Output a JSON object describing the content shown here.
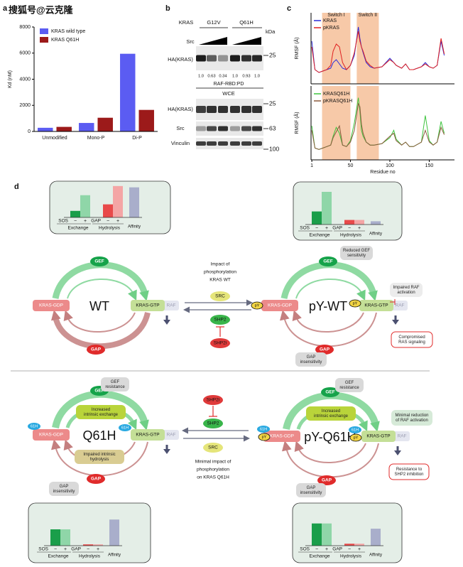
{
  "watermark": "搜狐号@云克隆",
  "panels": [
    "a",
    "b",
    "c",
    "d"
  ],
  "chart_data": [
    {
      "type": "bar",
      "ylabel": "Kd (nM)",
      "categories": [
        "Unmodified",
        "Mono-P",
        "Di-P"
      ],
      "series": [
        {
          "name": "KRAS wild type",
          "color": "#5b5cf2",
          "values": [
            280,
            650,
            5950
          ]
        },
        {
          "name": "KRAS Q61H",
          "color": "#9c1a1a",
          "values": [
            350,
            1050,
            1650
          ]
        }
      ],
      "ylim": [
        0,
        8000
      ],
      "yticks": [
        0,
        2000,
        4000,
        6000,
        8000
      ],
      "legend": "upper left"
    },
    {
      "type": "line",
      "ylabel": "RMSF (Å)",
      "x": [
        1,
        5,
        10,
        15,
        20,
        25,
        28,
        32,
        36,
        40,
        45,
        50,
        55,
        60,
        62,
        64,
        66,
        70,
        75,
        80,
        90,
        100,
        105,
        108,
        115,
        120,
        125,
        130,
        140,
        145,
        150,
        155,
        160,
        165,
        169
      ],
      "series": [
        {
          "name": "KRAS",
          "color": "#2b2bd9",
          "values": [
            3.0,
            1.0,
            0.8,
            0.9,
            1.0,
            1.1,
            1.5,
            1.7,
            1.4,
            1.1,
            1.0,
            1.3,
            2.0,
            4.0,
            3.2,
            2.6,
            2.2,
            1.5,
            1.2,
            1.1,
            1.2,
            1.8,
            1.5,
            1.3,
            1.1,
            1.4,
            1.0,
            1.0,
            1.2,
            1.5,
            1.2,
            1.1,
            1.3,
            3.0,
            2.0
          ]
        },
        {
          "name": "pKRAS",
          "color": "#e02020",
          "values": [
            2.6,
            1.0,
            0.8,
            0.9,
            1.0,
            1.3,
            2.3,
            2.8,
            2.6,
            1.5,
            1.0,
            1.3,
            2.2,
            3.7,
            3.0,
            2.6,
            2.3,
            1.6,
            1.3,
            1.1,
            1.2,
            1.7,
            1.5,
            1.3,
            1.1,
            1.4,
            1.0,
            1.0,
            1.2,
            1.4,
            1.2,
            1.1,
            1.3,
            3.2,
            2.1
          ]
        }
      ],
      "xlim": [
        0,
        182
      ],
      "ylim": [
        0,
        5
      ],
      "regions": [
        {
          "label": "Switch I",
          "range": [
            14,
            50
          ]
        },
        {
          "label": "Switch II",
          "range": [
            58,
            86
          ]
        }
      ],
      "legend": "upper left"
    },
    {
      "type": "line",
      "ylabel": "RMSF (Å)",
      "xlabel": "Residue no",
      "x": [
        1,
        5,
        10,
        15,
        20,
        25,
        28,
        32,
        36,
        40,
        45,
        50,
        55,
        60,
        62,
        64,
        66,
        70,
        75,
        80,
        90,
        100,
        105,
        108,
        115,
        120,
        125,
        130,
        140,
        145,
        150,
        155,
        160,
        165,
        169
      ],
      "series": [
        {
          "name": "KRASQ61H",
          "color": "#3ec43e",
          "values": [
            2.3,
            0.8,
            0.7,
            0.8,
            0.9,
            1.0,
            1.6,
            2.2,
            1.8,
            1.0,
            0.9,
            1.3,
            2.5,
            4.2,
            3.3,
            2.0,
            1.6,
            1.2,
            1.0,
            1.0,
            1.1,
            1.5,
            2.0,
            1.4,
            1.0,
            1.2,
            0.9,
            0.9,
            1.2,
            3.0,
            1.3,
            1.0,
            1.2,
            2.6,
            1.8
          ]
        },
        {
          "name": "pKRASQ61H",
          "color": "#8b5a3c",
          "values": [
            2.0,
            0.8,
            0.7,
            0.8,
            0.9,
            1.0,
            1.5,
            1.9,
            2.3,
            1.0,
            0.9,
            1.2,
            2.0,
            3.8,
            3.6,
            2.4,
            1.8,
            1.2,
            1.0,
            1.0,
            1.1,
            1.6,
            1.8,
            1.3,
            1.0,
            1.2,
            0.9,
            0.9,
            1.2,
            2.0,
            1.2,
            1.0,
            1.2,
            2.2,
            1.7
          ]
        }
      ],
      "xlim": [
        0,
        182
      ],
      "ylim": [
        0,
        5
      ],
      "xticks": [
        1,
        50,
        100,
        150
      ],
      "regions": [
        {
          "range": [
            14,
            50
          ]
        },
        {
          "range": [
            58,
            86
          ]
        }
      ],
      "legend": "upper left"
    },
    {
      "type": "bar",
      "categories": [
        "−",
        "+",
        "−",
        "+",
        "Affinity"
      ],
      "values": [
        10,
        34,
        20,
        48,
        46
      ],
      "colors": [
        "#1a9e4a",
        "#8fd6a8",
        "#e84a4a",
        "#f4a5a5",
        "#a9aecb"
      ],
      "ylim": [
        0,
        50
      ],
      "row_labels": [
        "SOS",
        "GAP"
      ],
      "groups": [
        "Exchange",
        "Hydrolysis"
      ]
    },
    {
      "type": "bar",
      "categories": [
        "−",
        "+",
        "−",
        "+",
        "Affinity"
      ],
      "values": [
        20,
        50,
        7,
        7,
        5
      ],
      "colors": [
        "#1a9e4a",
        "#8fd6a8",
        "#e84a4a",
        "#f4a5a5",
        "#a9aecb"
      ],
      "ylim": [
        0,
        50
      ],
      "row_labels": [
        "SOS",
        "GAP"
      ],
      "groups": [
        "Exchange",
        "Hydrolysis"
      ]
    },
    {
      "type": "bar",
      "categories": [
        "−",
        "+",
        "−",
        "+",
        "Affinity"
      ],
      "values": [
        25,
        25,
        2,
        2,
        40
      ],
      "colors": [
        "#1a9e4a",
        "#8fd6a8",
        "#e84a4a",
        "#f4a5a5",
        "#a9aecb"
      ],
      "ylim": [
        0,
        50
      ],
      "row_labels": [
        "SOS",
        "GAP"
      ],
      "groups": [
        "Exchange",
        "Hydrolysis"
      ]
    },
    {
      "type": "bar",
      "categories": [
        "−",
        "+",
        "−",
        "+",
        "Affinity"
      ],
      "values": [
        34,
        34,
        3,
        3,
        26
      ],
      "colors": [
        "#1a9e4a",
        "#8fd6a8",
        "#e84a4a",
        "#f4a5a5",
        "#a9aecb"
      ],
      "ylim": [
        0,
        50
      ],
      "row_labels": [
        "SOS",
        "GAP"
      ],
      "groups": [
        "Exchange",
        "Hydrolysis"
      ]
    }
  ],
  "blot": {
    "header": "KRAS",
    "groups": [
      "G12V",
      "Q61H"
    ],
    "treatment": "Src",
    "unit": "kDa",
    "pulldown": {
      "rows": [
        {
          "label": "HA(KRAS)",
          "marker": "25"
        }
      ],
      "quant": [
        "1.0",
        "0.63",
        "0.34",
        "1.0",
        "0.93",
        "1.0"
      ],
      "title": "RAF-RBD:PD"
    },
    "wce": {
      "title": "WCE",
      "rows": [
        {
          "label": "HA(KRAS)",
          "marker": "25"
        },
        {
          "label": "Src",
          "marker": "63"
        },
        {
          "label": "Vinculin",
          "marker": "100"
        }
      ]
    }
  },
  "diagram": {
    "wt": {
      "gef": "GEF",
      "gdp": "KRAS-GDP",
      "gtp": "KRAS-GTP",
      "raf": "RAF",
      "name": "WT",
      "gap": "GAP"
    },
    "mid_top": {
      "impact": [
        "Impact of",
        "phosphorylation",
        "KRAS WT"
      ],
      "src": "SRC",
      "shp2": "SHP2",
      "shp2i": "SHP2i"
    },
    "pywt": {
      "gef": "GEF",
      "gef_note": [
        "Reduced GEF",
        "sensitivity"
      ],
      "py1": "pY",
      "gdp": "KRAS-GDP",
      "py2": "pY",
      "gtp": "KRAS-GTP",
      "raf": "RAF",
      "raf_note": [
        "Impaired RAF",
        "activation"
      ],
      "name": "pY-WT",
      "outcome": [
        "Compromised",
        "RAS signaling"
      ],
      "gap": "GAP",
      "gap_note": [
        "GAP",
        "insensitivity"
      ]
    },
    "q61h": {
      "gef": "GEF",
      "gef_note": [
        "GEF",
        "resistance"
      ],
      "exchange": [
        "Increased",
        "intrinsic exchange"
      ],
      "m1": "61H",
      "gdp": "KRAS-GDP",
      "name": "Q61H",
      "m2": "61H",
      "gtp": "KRAS-GTP",
      "raf": "RAF",
      "hydrolysis": [
        "Impaired intrinsic",
        "hydrolysis"
      ],
      "gap_note": [
        "GAP",
        "insensitivity"
      ],
      "gap": "GAP"
    },
    "mid_bottom": {
      "shp2i": "SHP2i",
      "shp2": "SHP2",
      "src": "SRC",
      "impact": [
        "Minimal impact of",
        "phosphorylation",
        "on KRAS Q61H"
      ]
    },
    "pyq61h": {
      "gef": "GEF",
      "gef_note": [
        "GEF",
        "resistance"
      ],
      "exchange": [
        "Increased",
        "intrinsic exchange"
      ],
      "m1": "61H",
      "py1": "pY",
      "gdp": "KRAS-GDP",
      "name": "pY-Q61H",
      "m2": "61H",
      "py2": "pY",
      "gtp": "KRAS-GTP",
      "raf": "RAF",
      "raf_note": [
        "Minimal reduction",
        "of RAF activation"
      ],
      "outcome": [
        "Resistance to",
        "SHP2 inhibition"
      ],
      "gap_note": [
        "GAP",
        "insensitivity"
      ],
      "gap": "GAP"
    }
  }
}
